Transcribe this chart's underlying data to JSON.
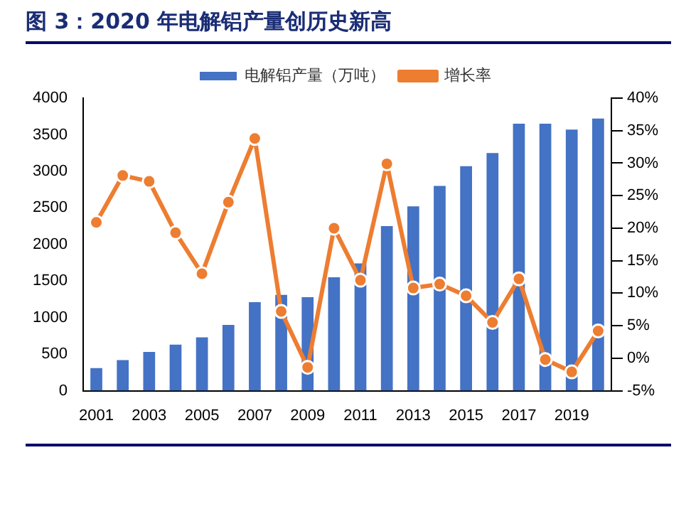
{
  "chart_data": {
    "type": "bar",
    "title": "图 3：2020 年电解铝产量创历史新高",
    "categories": [
      "2001",
      null,
      "2003",
      null,
      "2005",
      null,
      "2007",
      null,
      "2009",
      null,
      "2011",
      null,
      "2013",
      null,
      "2015",
      null,
      "2017",
      null,
      "2019",
      null
    ],
    "series": [
      {
        "name": "电解铝产量（万吨）",
        "color": "#4472c4",
        "values": [
          310,
          420,
          530,
          630,
          730,
          900,
          1210,
          1310,
          1280,
          1550,
          1740,
          2250,
          2520,
          2800,
          3070,
          3250,
          3650,
          3650,
          3570,
          3720
        ]
      },
      {
        "name": "增长率",
        "type": "line",
        "axis": "y2",
        "color": "#ed7d31",
        "values": [
          20.9,
          28.1,
          27.2,
          19.3,
          13.0,
          24.0,
          33.8,
          7.2,
          -1.4,
          20.0,
          12.0,
          29.9,
          10.8,
          11.4,
          9.6,
          5.5,
          12.2,
          -0.2,
          -2.1,
          4.2
        ]
      }
    ],
    "ylim": [
      0,
      4000
    ],
    "yticks": [
      0,
      500,
      1000,
      1500,
      2000,
      2500,
      3000,
      3500,
      4000
    ],
    "y2lim": [
      -5,
      40
    ],
    "y2ticks": [
      {
        "value": -5,
        "label": "-5%"
      },
      {
        "value": 0,
        "label": "0%"
      },
      {
        "value": 5,
        "label": "5%"
      },
      {
        "value": 10,
        "label": "10%"
      },
      {
        "value": 15,
        "label": "15%"
      },
      {
        "value": 20,
        "label": "20%"
      },
      {
        "value": 25,
        "label": "25%"
      },
      {
        "value": 30,
        "label": "30%"
      },
      {
        "value": 35,
        "label": "35%"
      },
      {
        "value": 40,
        "label": "40%"
      }
    ],
    "legend": "top",
    "marker": "circle",
    "grid": false
  }
}
